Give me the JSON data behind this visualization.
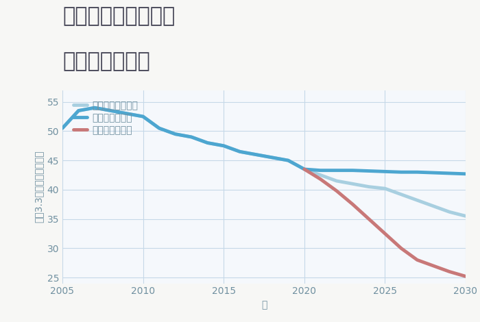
{
  "title_line1": "兵庫県姫路市今宿の",
  "title_line2": "土地の価格推移",
  "xlabel": "年",
  "ylabel": "坪（3.3㎡）単価（万円）",
  "background_color": "#f7f7f5",
  "plot_background": "#f5f8fc",
  "grid_color": "#c5d8e8",
  "good_scenario": {
    "label": "グッドシナリオ",
    "color": "#4da6d0",
    "x": [
      2005,
      2006,
      2007,
      2008,
      2009,
      2010,
      2011,
      2012,
      2013,
      2014,
      2015,
      2016,
      2017,
      2018,
      2019,
      2020,
      2021,
      2022,
      2023,
      2024,
      2025,
      2026,
      2027,
      2028,
      2029,
      2030
    ],
    "y": [
      50.5,
      53.5,
      54.0,
      53.5,
      53.0,
      52.5,
      50.5,
      49.5,
      49.0,
      48.0,
      47.5,
      46.5,
      46.0,
      45.5,
      45.0,
      43.5,
      43.3,
      43.3,
      43.3,
      43.2,
      43.1,
      43.0,
      43.0,
      42.9,
      42.8,
      42.7
    ],
    "linewidth": 3.5,
    "linestyle": "-"
  },
  "bad_scenario": {
    "label": "バッドシナリオ",
    "color": "#c87878",
    "x": [
      2020,
      2021,
      2022,
      2023,
      2024,
      2025,
      2026,
      2027,
      2028,
      2029,
      2030
    ],
    "y": [
      43.5,
      41.8,
      39.8,
      37.5,
      35.0,
      32.5,
      30.0,
      28.0,
      27.0,
      26.0,
      25.2
    ],
    "linewidth": 3.5,
    "linestyle": "-"
  },
  "normal_scenario": {
    "label": "ノーマルシナリオ",
    "color": "#a8cfe0",
    "x": [
      2005,
      2006,
      2007,
      2008,
      2009,
      2010,
      2011,
      2012,
      2013,
      2014,
      2015,
      2016,
      2017,
      2018,
      2019,
      2020,
      2021,
      2022,
      2023,
      2024,
      2025,
      2026,
      2027,
      2028,
      2029,
      2030
    ],
    "y": [
      50.5,
      53.5,
      54.0,
      53.5,
      53.0,
      52.5,
      50.5,
      49.5,
      49.0,
      48.0,
      47.5,
      46.5,
      46.0,
      45.5,
      45.0,
      43.5,
      42.5,
      41.5,
      41.0,
      40.5,
      40.2,
      39.2,
      38.2,
      37.2,
      36.2,
      35.5
    ],
    "linewidth": 3.5,
    "linestyle": "-"
  },
  "xlim": [
    2005,
    2030
  ],
  "ylim": [
    24,
    57
  ],
  "xticks": [
    2005,
    2010,
    2015,
    2020,
    2025,
    2030
  ],
  "yticks": [
    25,
    30,
    35,
    40,
    45,
    50,
    55
  ],
  "title_fontsize": 22,
  "axis_fontsize": 10,
  "tick_fontsize": 10,
  "legend_fontsize": 10,
  "tick_color": "#7090a0",
  "label_color": "#7090a0"
}
